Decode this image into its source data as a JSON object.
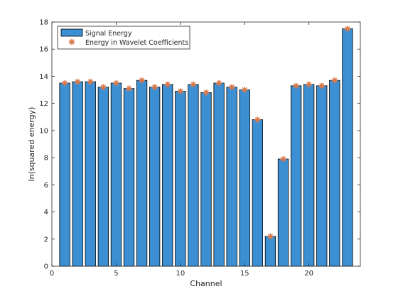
{
  "chart_data": {
    "type": "bar",
    "x": [
      1,
      2,
      3,
      4,
      5,
      6,
      7,
      8,
      9,
      10,
      11,
      12,
      13,
      14,
      15,
      16,
      17,
      18,
      19,
      20,
      21,
      22,
      23
    ],
    "series": [
      {
        "name": "Signal Energy",
        "kind": "bar",
        "color": "#3b8fd2",
        "values": [
          13.5,
          13.6,
          13.6,
          13.2,
          13.5,
          13.1,
          13.7,
          13.2,
          13.4,
          12.9,
          13.4,
          12.8,
          13.5,
          13.2,
          13.0,
          10.8,
          2.2,
          7.9,
          13.3,
          13.4,
          13.3,
          13.7,
          17.5
        ]
      },
      {
        "name": "Energy in Wavelet Coefficients",
        "kind": "marker",
        "color": "#d9784b",
        "values": [
          13.5,
          13.6,
          13.6,
          13.2,
          13.5,
          13.1,
          13.7,
          13.2,
          13.4,
          12.9,
          13.4,
          12.8,
          13.5,
          13.2,
          13.0,
          10.8,
          2.2,
          7.9,
          13.3,
          13.4,
          13.3,
          13.7,
          17.5
        ]
      }
    ],
    "xlabel": "Channel",
    "ylabel": "ln(squared energy)",
    "xlim": [
      0,
      24
    ],
    "ylim": [
      0,
      18
    ],
    "xticks": [
      0,
      5,
      10,
      15,
      20
    ],
    "yticks": [
      0,
      2,
      4,
      6,
      8,
      10,
      12,
      14,
      16,
      18
    ],
    "grid": false,
    "legend_position": "top-left"
  }
}
